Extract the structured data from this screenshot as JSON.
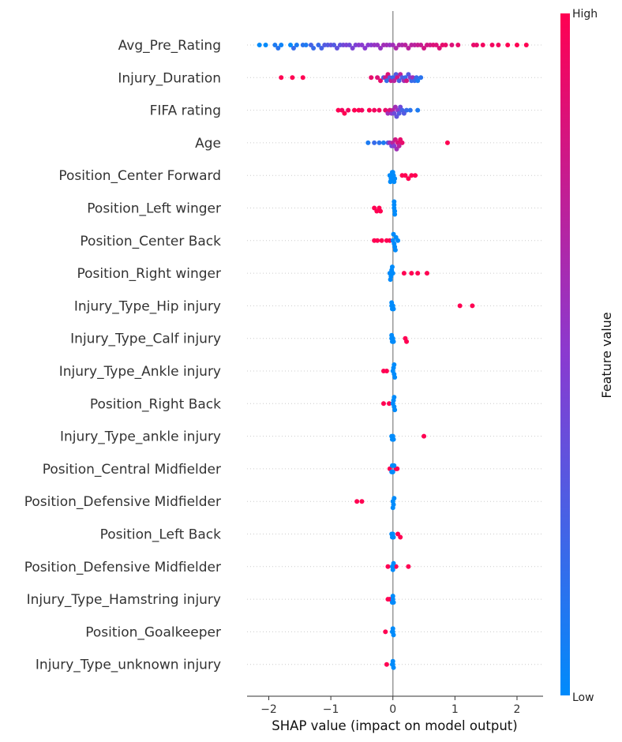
{
  "chart_data": {
    "type": "scatter",
    "subtype": "shap-beeswarm",
    "xlabel": "SHAP value (impact on model output)",
    "xlim": [
      -2.35,
      2.42
    ],
    "x_ticks": [
      -2,
      -1,
      0,
      1,
      2
    ],
    "colorbar": {
      "title": "Feature value",
      "high_label": "High",
      "low_label": "Low",
      "low_color": "#008bfb",
      "high_color": "#ff0052"
    },
    "features": [
      {
        "name": "Avg_Pre_Rating",
        "points": [
          [
            -2.15,
            0
          ],
          [
            -2.05,
            0
          ],
          [
            -1.9,
            0.1
          ],
          [
            -1.85,
            0.15
          ],
          [
            -1.8,
            0.05
          ],
          [
            -1.65,
            0
          ],
          [
            -1.6,
            0.2
          ],
          [
            -1.55,
            0.1
          ],
          [
            -1.45,
            0.15
          ],
          [
            -1.4,
            0.1
          ],
          [
            -1.32,
            0.25
          ],
          [
            -1.28,
            0.2
          ],
          [
            -1.2,
            0.2
          ],
          [
            -1.15,
            0.25
          ],
          [
            -1.1,
            0.3
          ],
          [
            -1.05,
            0.3
          ],
          [
            -1.0,
            0.35
          ],
          [
            -0.95,
            0.3
          ],
          [
            -0.9,
            0.35
          ],
          [
            -0.85,
            0.35
          ],
          [
            -0.8,
            0.4
          ],
          [
            -0.75,
            0.45
          ],
          [
            -0.7,
            0.4
          ],
          [
            -0.65,
            0.45
          ],
          [
            -0.6,
            0.45
          ],
          [
            -0.55,
            0.5
          ],
          [
            -0.5,
            0.5
          ],
          [
            -0.45,
            0.5
          ],
          [
            -0.4,
            0.5
          ],
          [
            -0.35,
            0.5
          ],
          [
            -0.3,
            0.55
          ],
          [
            -0.25,
            0.55
          ],
          [
            -0.2,
            0.55
          ],
          [
            -0.15,
            0.6
          ],
          [
            -0.1,
            0.6
          ],
          [
            -0.05,
            0.55
          ],
          [
            0.0,
            0.6
          ],
          [
            0.05,
            0.65
          ],
          [
            0.1,
            0.65
          ],
          [
            0.15,
            0.65
          ],
          [
            0.2,
            0.7
          ],
          [
            0.25,
            0.7
          ],
          [
            0.3,
            0.7
          ],
          [
            0.35,
            0.7
          ],
          [
            0.4,
            0.75
          ],
          [
            0.45,
            0.75
          ],
          [
            0.5,
            0.8
          ],
          [
            0.55,
            0.8
          ],
          [
            0.6,
            0.8
          ],
          [
            0.65,
            0.85
          ],
          [
            0.7,
            0.85
          ],
          [
            0.75,
            0.85
          ],
          [
            0.8,
            0.9
          ],
          [
            0.85,
            0.9
          ],
          [
            0.95,
            0.85
          ],
          [
            1.05,
            0.9
          ],
          [
            1.3,
            0.9
          ],
          [
            1.35,
            0.9
          ],
          [
            1.45,
            0.95
          ],
          [
            1.6,
            0.95
          ],
          [
            1.7,
            0.95
          ],
          [
            1.85,
            1
          ],
          [
            2.0,
            1
          ],
          [
            2.15,
            1
          ]
        ]
      },
      {
        "name": "Injury_Duration",
        "points": [
          [
            -1.8,
            1
          ],
          [
            -1.62,
            1
          ],
          [
            -1.45,
            1
          ],
          [
            -0.35,
            0.9
          ],
          [
            -0.25,
            0.85
          ],
          [
            -0.2,
            0.9
          ],
          [
            -0.15,
            0.3
          ],
          [
            -0.12,
            0.8
          ],
          [
            -0.1,
            0.2
          ],
          [
            -0.08,
            0.85
          ],
          [
            -0.05,
            0.3
          ],
          [
            -0.03,
            0.75
          ],
          [
            0.0,
            0.2
          ],
          [
            0.02,
            0.7
          ],
          [
            0.05,
            0.3
          ],
          [
            0.07,
            0.8
          ],
          [
            0.1,
            0.25
          ],
          [
            0.12,
            0.7
          ],
          [
            0.15,
            0.3
          ],
          [
            0.18,
            0.6
          ],
          [
            0.2,
            0.2
          ],
          [
            0.22,
            0.8
          ],
          [
            0.25,
            0.3
          ],
          [
            0.28,
            0.5
          ],
          [
            0.3,
            0.2
          ],
          [
            0.32,
            0.6
          ],
          [
            0.35,
            0.2
          ],
          [
            0.38,
            0.2
          ],
          [
            0.4,
            0.1
          ],
          [
            0.45,
            0.15
          ]
        ]
      },
      {
        "name": "FIFA rating",
        "points": [
          [
            -0.88,
            1
          ],
          [
            -0.82,
            0.95
          ],
          [
            -0.78,
            1
          ],
          [
            -0.72,
            0.95
          ],
          [
            -0.62,
            1
          ],
          [
            -0.55,
            1
          ],
          [
            -0.5,
            0.95
          ],
          [
            -0.38,
            1
          ],
          [
            -0.3,
            0.95
          ],
          [
            -0.22,
            0.95
          ],
          [
            -0.12,
            0.9
          ],
          [
            -0.08,
            0.6
          ],
          [
            -0.05,
            0.85
          ],
          [
            -0.02,
            0.5
          ],
          [
            0.0,
            0.7
          ],
          [
            0.02,
            0.4
          ],
          [
            0.04,
            0.6
          ],
          [
            0.06,
            0.35
          ],
          [
            0.08,
            0.5
          ],
          [
            0.1,
            0.3
          ],
          [
            0.12,
            0.4
          ],
          [
            0.15,
            0.25
          ],
          [
            0.18,
            0.3
          ],
          [
            0.22,
            0.2
          ],
          [
            0.28,
            0.15
          ],
          [
            0.4,
            0.1
          ]
        ]
      },
      {
        "name": "Age",
        "points": [
          [
            -0.4,
            0.1
          ],
          [
            -0.3,
            0.2
          ],
          [
            -0.22,
            0.15
          ],
          [
            -0.15,
            0.1
          ],
          [
            -0.08,
            0.3
          ],
          [
            -0.05,
            0.6
          ],
          [
            -0.02,
            0.4
          ],
          [
            0.0,
            0.7
          ],
          [
            0.02,
            0.5
          ],
          [
            0.04,
            0.8
          ],
          [
            0.06,
            0.6
          ],
          [
            0.08,
            0.85
          ],
          [
            0.1,
            0.7
          ],
          [
            0.12,
            0.9
          ],
          [
            0.15,
            0.9
          ],
          [
            0.88,
            1
          ]
        ]
      },
      {
        "name": "Position_Center Forward",
        "points": [
          [
            -0.05,
            0
          ],
          [
            -0.03,
            0
          ],
          [
            -0.01,
            0
          ],
          [
            0.01,
            0
          ],
          [
            0.03,
            0
          ],
          [
            0.0,
            0
          ],
          [
            -0.04,
            0
          ],
          [
            0.02,
            0
          ],
          [
            0.15,
            1
          ],
          [
            0.2,
            1
          ],
          [
            0.25,
            1
          ],
          [
            0.3,
            1
          ],
          [
            0.36,
            1
          ]
        ]
      },
      {
        "name": "Position_Left winger",
        "points": [
          [
            -0.3,
            1
          ],
          [
            -0.26,
            1
          ],
          [
            -0.22,
            1
          ],
          [
            -0.2,
            1
          ],
          [
            0.02,
            0
          ],
          [
            0.03,
            0
          ],
          [
            0.02,
            0
          ],
          [
            0.03,
            0
          ],
          [
            0.02,
            0
          ]
        ]
      },
      {
        "name": "Position_Center Back",
        "points": [
          [
            -0.3,
            1
          ],
          [
            -0.25,
            1
          ],
          [
            -0.18,
            1
          ],
          [
            -0.1,
            1
          ],
          [
            -0.05,
            1
          ],
          [
            0.0,
            0
          ],
          [
            0.02,
            0
          ],
          [
            0.05,
            0
          ],
          [
            0.08,
            0
          ],
          [
            0.03,
            0
          ],
          [
            0.01,
            0
          ],
          [
            0.04,
            0
          ]
        ]
      },
      {
        "name": "Position_Right winger",
        "points": [
          [
            -0.05,
            0
          ],
          [
            -0.03,
            0
          ],
          [
            -0.02,
            0
          ],
          [
            0.0,
            0
          ],
          [
            -0.04,
            0
          ],
          [
            -0.01,
            0
          ],
          [
            0.18,
            1
          ],
          [
            0.3,
            1
          ],
          [
            0.4,
            1
          ],
          [
            0.55,
            1
          ]
        ]
      },
      {
        "name": "Injury_Type_Hip injury",
        "points": [
          [
            -0.02,
            0
          ],
          [
            0.0,
            0
          ],
          [
            -0.01,
            0
          ],
          [
            0.01,
            0
          ],
          [
            -0.02,
            0
          ],
          [
            1.08,
            1
          ],
          [
            1.28,
            1
          ]
        ]
      },
      {
        "name": "Injury_Type_Calf injury",
        "points": [
          [
            -0.02,
            0
          ],
          [
            0.0,
            0
          ],
          [
            -0.01,
            0
          ],
          [
            0.01,
            0
          ],
          [
            -0.02,
            0
          ],
          [
            0.2,
            1
          ],
          [
            0.22,
            1
          ]
        ]
      },
      {
        "name": "Injury_Type_Ankle injury",
        "points": [
          [
            -0.15,
            1
          ],
          [
            -0.1,
            1
          ],
          [
            0.0,
            0
          ],
          [
            0.02,
            0
          ],
          [
            0.01,
            0
          ],
          [
            0.03,
            0
          ],
          [
            0.02,
            0
          ]
        ]
      },
      {
        "name": "Position_Right Back",
        "points": [
          [
            -0.15,
            1
          ],
          [
            -0.06,
            1
          ],
          [
            0.0,
            0
          ],
          [
            0.02,
            0
          ],
          [
            0.01,
            0
          ],
          [
            0.03,
            0
          ],
          [
            0.02,
            0
          ]
        ]
      },
      {
        "name": "Injury_Type_ankle injury",
        "points": [
          [
            -0.02,
            0
          ],
          [
            0.0,
            0
          ],
          [
            -0.01,
            0
          ],
          [
            0.01,
            0
          ],
          [
            0.5,
            1
          ]
        ]
      },
      {
        "name": "Position_Central Midfielder",
        "points": [
          [
            -0.05,
            1
          ],
          [
            0.05,
            1
          ],
          [
            0.07,
            1
          ],
          [
            -0.02,
            0
          ],
          [
            0.0,
            0
          ],
          [
            -0.01,
            0
          ],
          [
            0.02,
            0
          ]
        ]
      },
      {
        "name": "Position_Defensive Midfielder ",
        "points": [
          [
            -0.58,
            1
          ],
          [
            -0.5,
            1
          ],
          [
            0.0,
            0
          ],
          [
            0.01,
            0
          ],
          [
            0.02,
            0
          ],
          [
            0.0,
            0
          ]
        ]
      },
      {
        "name": "Position_Left Back",
        "points": [
          [
            -0.02,
            0
          ],
          [
            0.0,
            0
          ],
          [
            -0.01,
            0
          ],
          [
            0.01,
            0
          ],
          [
            0.08,
            1
          ],
          [
            0.12,
            1
          ]
        ]
      },
      {
        "name": "Position_Defensive Midfielder",
        "points": [
          [
            -0.08,
            1
          ],
          [
            0.05,
            1
          ],
          [
            0.25,
            1
          ],
          [
            0.0,
            0
          ],
          [
            -0.01,
            0
          ],
          [
            0.01,
            0
          ]
        ]
      },
      {
        "name": "Injury_Type_Hamstring injury",
        "points": [
          [
            -0.08,
            1
          ],
          [
            -0.05,
            1
          ],
          [
            0.0,
            0
          ],
          [
            -0.01,
            0
          ],
          [
            0.01,
            0
          ],
          [
            0.0,
            0
          ]
        ]
      },
      {
        "name": "Position_Goalkeeper",
        "points": [
          [
            -0.12,
            1
          ],
          [
            0.0,
            0
          ],
          [
            -0.01,
            0
          ],
          [
            0.01,
            0
          ],
          [
            0.0,
            0
          ]
        ]
      },
      {
        "name": "Injury_Type_unknown injury",
        "points": [
          [
            -0.1,
            1
          ],
          [
            0.0,
            0
          ],
          [
            -0.01,
            0
          ],
          [
            0.01,
            0
          ],
          [
            0.0,
            0
          ]
        ]
      }
    ]
  }
}
